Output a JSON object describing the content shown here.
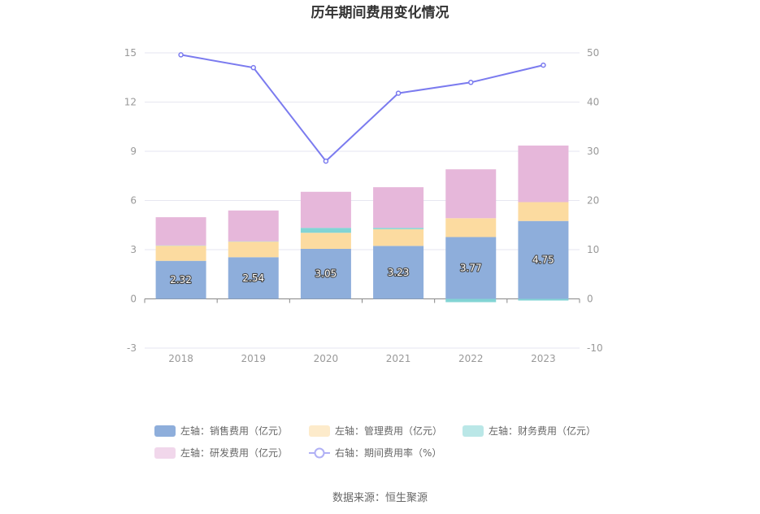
{
  "chart_data": {
    "type": "bar",
    "title": "历年期间费用变化情况",
    "categories": [
      "2018",
      "2019",
      "2020",
      "2021",
      "2022",
      "2023"
    ],
    "stacked": true,
    "left_axis": {
      "ylim": [
        -3,
        15
      ],
      "ticks": [
        "-3",
        "0",
        "3",
        "6",
        "9",
        "12",
        "15"
      ]
    },
    "right_axis": {
      "ylim": [
        -10,
        50
      ],
      "ticks": [
        "-10",
        "0",
        "10",
        "20",
        "30",
        "40",
        "50"
      ]
    },
    "series": [
      {
        "name": "左轴：销售费用（亿元）",
        "type": "bar",
        "axis": "left",
        "color": "#8eaedb",
        "values": [
          2.32,
          2.54,
          3.05,
          3.23,
          3.77,
          4.75
        ],
        "show_labels": true
      },
      {
        "name": "左轴：管理费用（亿元）",
        "type": "bar",
        "axis": "left",
        "color": "#fcdba0",
        "values": [
          0.92,
          0.95,
          0.98,
          1.02,
          1.15,
          1.15
        ]
      },
      {
        "name": "左轴：财务费用（亿元）",
        "type": "bar",
        "axis": "left",
        "color": "#82d4d4",
        "values": [
          0.02,
          0.02,
          0.3,
          0.08,
          -0.2,
          -0.1
        ]
      },
      {
        "name": "左轴：研发费用（亿元）",
        "type": "bar",
        "axis": "left",
        "color": "#e6b7da",
        "values": [
          1.72,
          1.88,
          2.2,
          2.48,
          2.98,
          3.45
        ]
      },
      {
        "name": "右轴：期间费用率（%）",
        "type": "line",
        "axis": "right",
        "color": "#7b7bef",
        "values": [
          49.6,
          47.0,
          28.0,
          41.8,
          44.0,
          47.5
        ]
      }
    ],
    "grid": true,
    "legend_position": "bottom"
  },
  "source": "数据来源：恒生聚源"
}
